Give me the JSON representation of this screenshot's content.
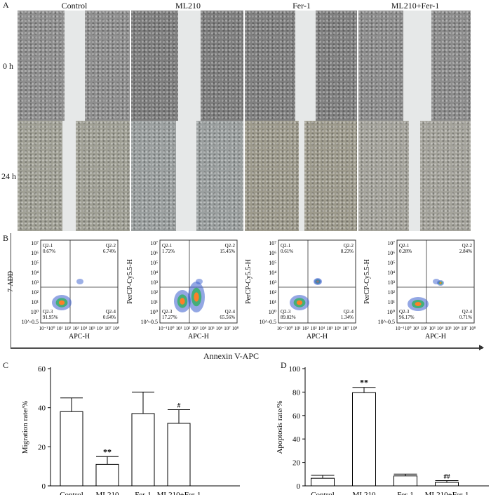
{
  "panels": {
    "a": "A",
    "b": "B",
    "c": "C",
    "d": "D"
  },
  "panel_a": {
    "columns": [
      "Control",
      "ML210",
      "Fer-1",
      "ML210+Fer-1"
    ],
    "rows": [
      "0 h",
      "24 h"
    ]
  },
  "panel_b": {
    "shared_xlabel": "Annexin V-APC",
    "plots": [
      {
        "ylabel": "7-ADD",
        "xlabel": "APC-H",
        "q1": "Q2-1",
        "q1v": "0.67%",
        "q2": "Q2-2",
        "q2v": "6.74%",
        "q3": "Q2-3",
        "q3v": "91.95%",
        "q4": "Q2-4",
        "q4v": "0.64%"
      },
      {
        "ylabel": "PerCP-Cy5.5-H",
        "xlabel": "APC-H",
        "q1": "Q2-1",
        "q1v": "1.72%",
        "q2": "Q2-2",
        "q2v": "15.45%",
        "q3": "Q2-3",
        "q3v": "17.27%",
        "q4": "Q2-4",
        "q4v": "65.56%"
      },
      {
        "ylabel": "PerCP-Cy5.5-H",
        "xlabel": "APC-H",
        "q1": "Q2-1",
        "q1v": "0.61%",
        "q2": "Q2-2",
        "q2v": "8.23%",
        "q3": "Q2-3",
        "q3v": "89.82%",
        "q4": "Q2-4",
        "q4v": "1.34%"
      },
      {
        "ylabel": "PerCP-Cy5.5-H",
        "xlabel": "APC-H",
        "q1": "Q2-1",
        "q1v": "0.28%",
        "q2": "Q2-2",
        "q2v": "2.84%",
        "q3": "Q2-3",
        "q3v": "96.17%",
        "q4": "Q2-4",
        "q4v": "0.71%"
      }
    ],
    "yticks": [
      "10⁷",
      "10⁶",
      "10⁵",
      "10⁴",
      "10³",
      "10²",
      "10¹",
      "10⁰",
      "10^-0.5"
    ],
    "xticks": [
      "10⁻¹",
      "10⁰",
      "10¹",
      "10²",
      "10³",
      "10⁴",
      "10⁵",
      "10⁶",
      "10⁷",
      "10⁸"
    ]
  },
  "chart_data": [
    {
      "type": "bar",
      "categories": [
        "Control",
        "ML210",
        "Fer-1",
        "ML210+Fer-1"
      ],
      "values": [
        38,
        11,
        37,
        32
      ],
      "errors": [
        7,
        4,
        11,
        7
      ],
      "annotations": [
        "",
        "**",
        "",
        "#"
      ],
      "ylabel": "Migration rate/%",
      "ylim": [
        0,
        60
      ],
      "yticks": [
        0,
        20,
        40,
        60
      ]
    },
    {
      "type": "bar",
      "categories": [
        "Control",
        "ML210",
        "Fer-1",
        "ML210+Fer-1"
      ],
      "values": [
        6.5,
        79.5,
        8.5,
        3
      ],
      "errors": [
        2.5,
        4.5,
        1.5,
        1.5
      ],
      "annotations": [
        "",
        "**",
        "",
        "##"
      ],
      "ylabel": "Apoptosis rate/%",
      "ylim": [
        0,
        100
      ],
      "yticks": [
        0,
        20,
        40,
        60,
        80,
        100
      ]
    }
  ]
}
